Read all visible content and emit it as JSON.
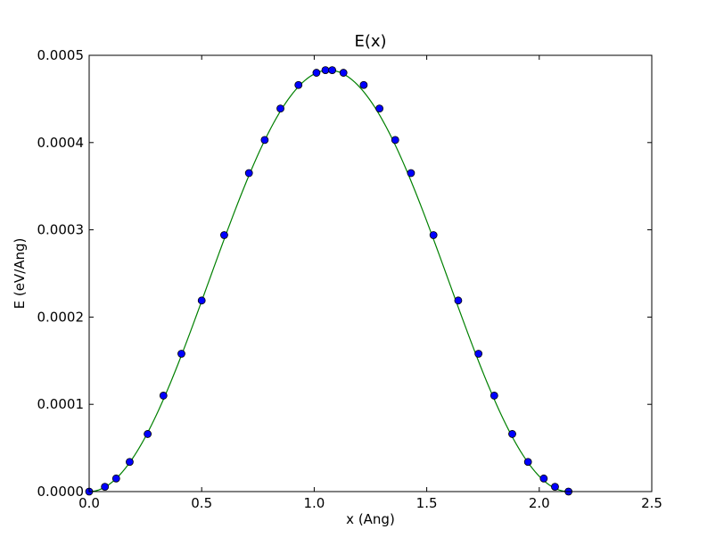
{
  "chart_data": {
    "type": "scatter",
    "title": "E(x)",
    "xlabel": "x (Ang)",
    "ylabel": "E (eV/Ang)",
    "xlim": [
      0.0,
      2.5
    ],
    "ylim": [
      0.0,
      0.0005
    ],
    "x_ticks": [
      0.0,
      0.5,
      1.0,
      1.5,
      2.0,
      2.5
    ],
    "x_tick_labels": [
      "0.0",
      "0.5",
      "1.0",
      "1.5",
      "2.0",
      "2.5"
    ],
    "y_ticks": [
      0.0,
      0.0001,
      0.0002,
      0.0003,
      0.0004,
      0.0005
    ],
    "y_tick_labels": [
      "0.0000",
      "0.0001",
      "0.0002",
      "0.0003",
      "0.0004",
      "0.0005"
    ],
    "grid": false,
    "legend": "none",
    "series": [
      {
        "kind": "markers",
        "color": "#0000ff",
        "edge_color": "#000000",
        "x": [
          0.0,
          0.07,
          0.12,
          0.18,
          0.26,
          0.33,
          0.41,
          0.5,
          0.6,
          0.71,
          0.78,
          0.85,
          0.93,
          1.01,
          1.05,
          1.08,
          1.13,
          1.22,
          1.29,
          1.36,
          1.43,
          1.53,
          1.64,
          1.73,
          1.8,
          1.88,
          1.95,
          2.02,
          2.07,
          2.13
        ],
        "y": [
          0.0,
          5.5e-06,
          1.5e-05,
          3.4e-05,
          6.6e-05,
          0.00011,
          0.000158,
          0.000219,
          0.000294,
          0.000365,
          0.000403,
          0.000439,
          0.000466,
          0.00048,
          0.000483,
          0.000483,
          0.00048,
          0.000466,
          0.000439,
          0.000403,
          0.000365,
          0.000294,
          0.000219,
          0.000158,
          0.00011,
          6.6e-05,
          3.4e-05,
          1.5e-05,
          5.5e-06,
          0.0
        ]
      },
      {
        "kind": "line",
        "color": "#008000",
        "function": "0.000483 * sin^2(pi * x / 2.13)",
        "x_range": [
          0.0,
          2.13
        ]
      }
    ]
  }
}
